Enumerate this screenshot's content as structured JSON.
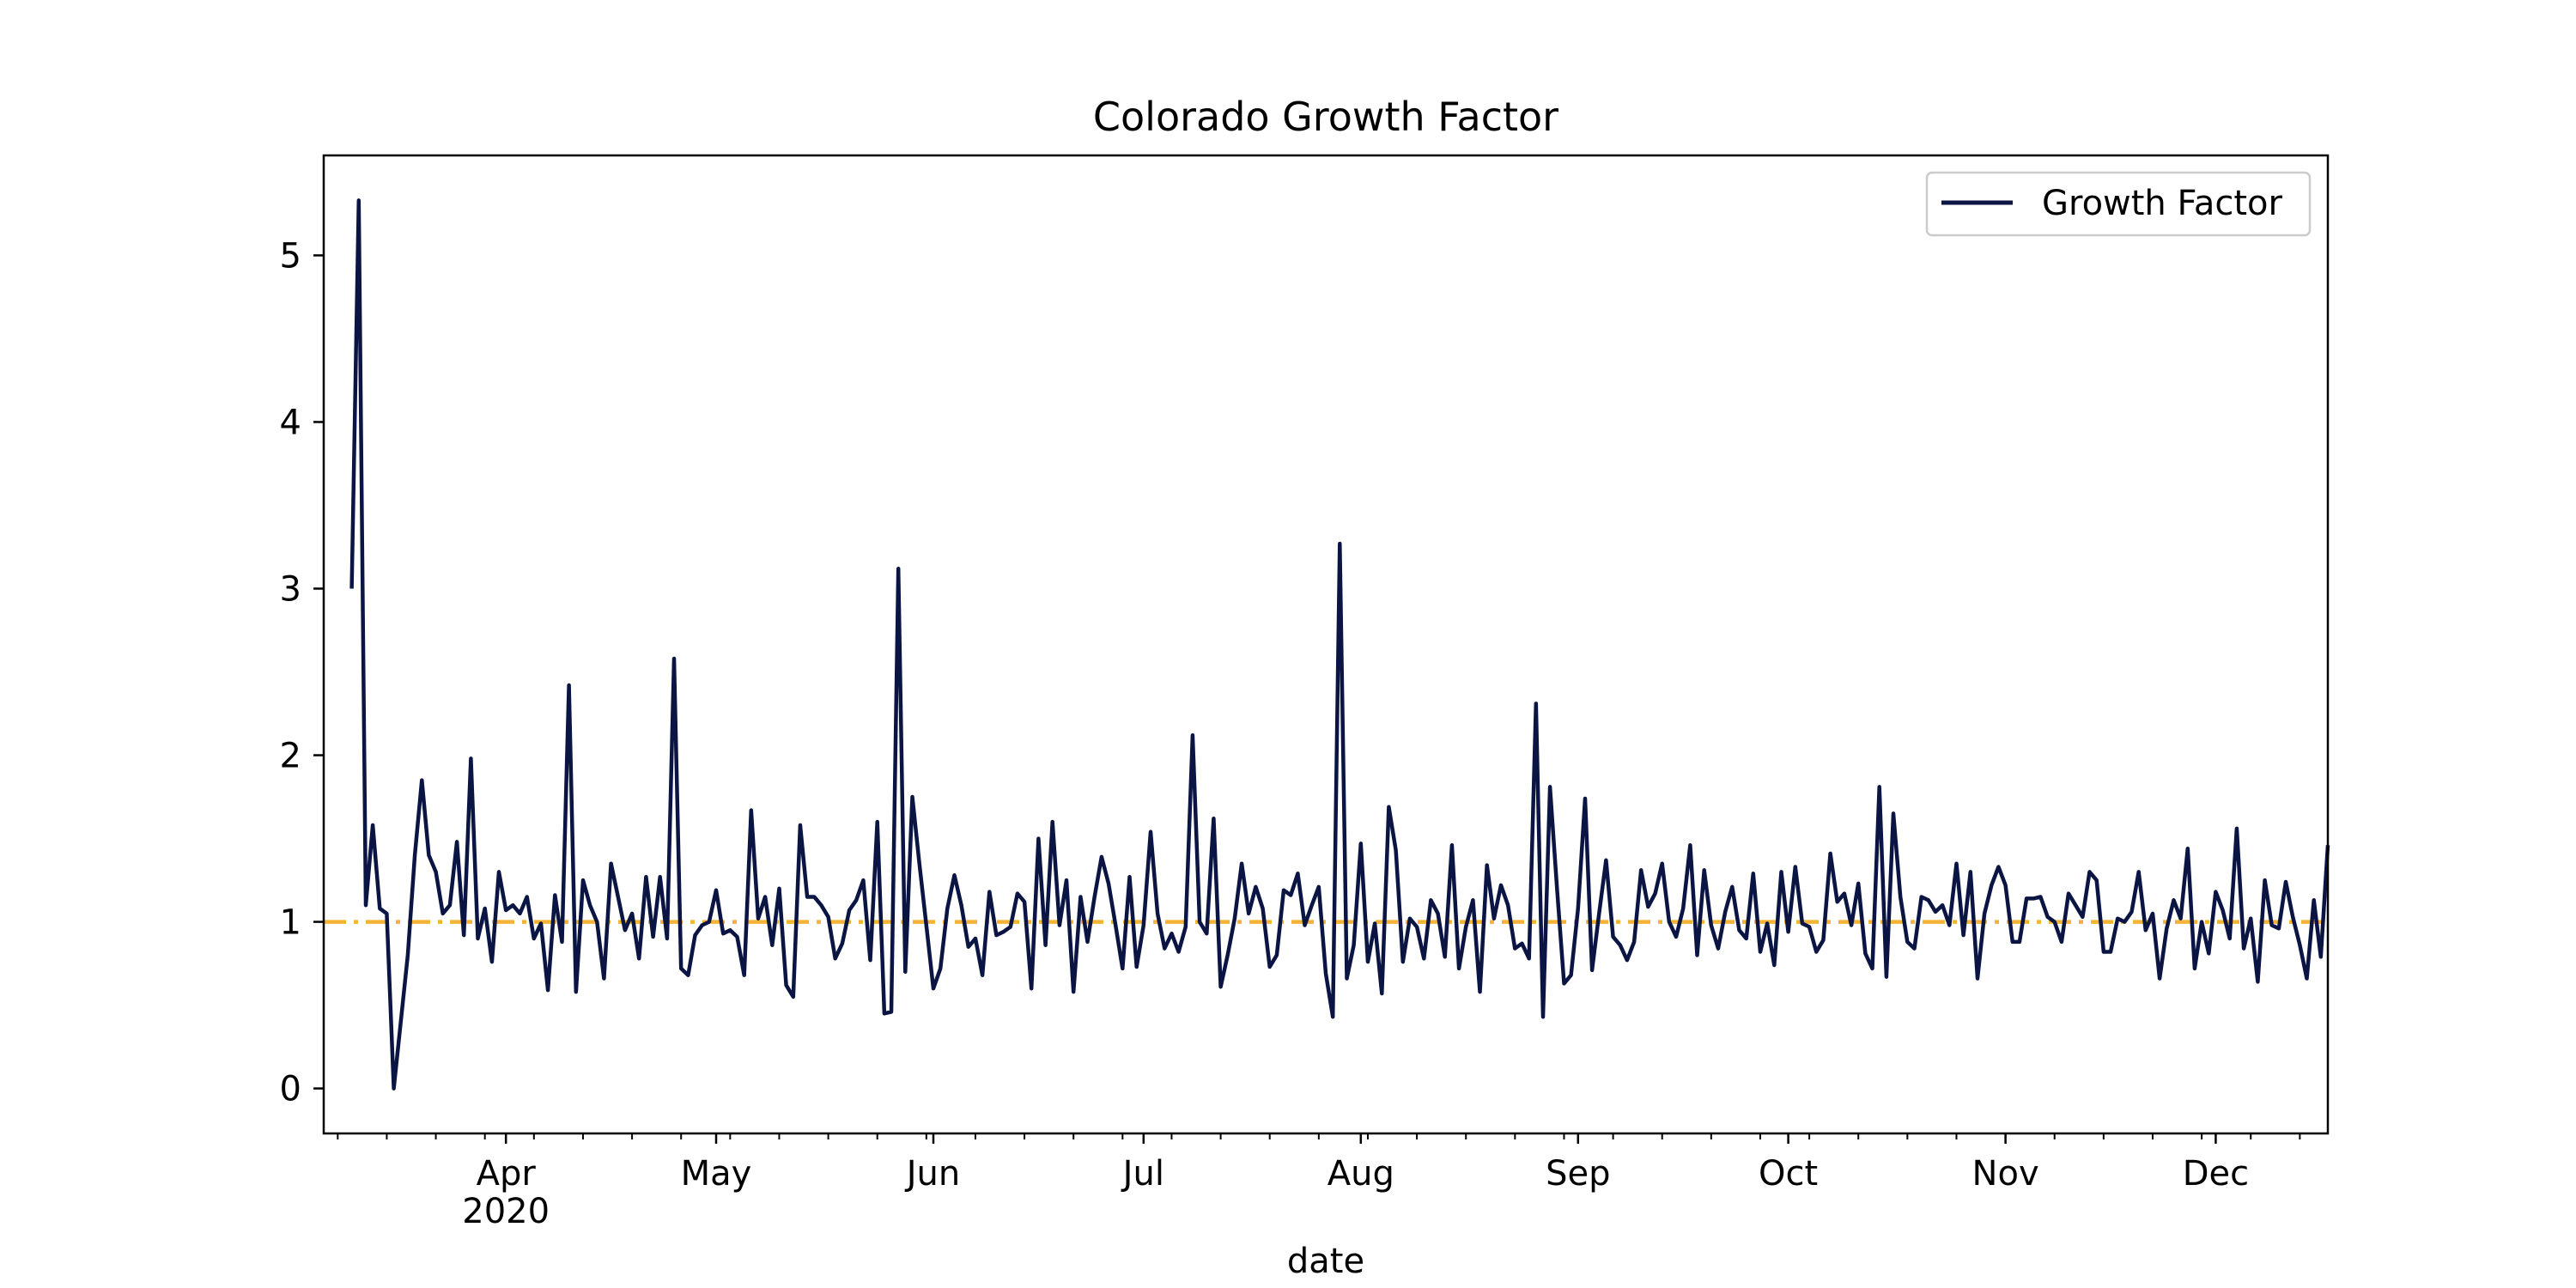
{
  "chart_data": {
    "type": "line",
    "title": "Colorado Growth Factor",
    "xlabel": "date",
    "ylabel": "",
    "ylim": [
      -0.27,
      5.6
    ],
    "xlim": [
      "2020-03-06",
      "2020-12-17"
    ],
    "grid": false,
    "legend": {
      "position": "top-right",
      "entries": [
        "Growth Factor"
      ]
    },
    "x_ticks": [
      {
        "date": "2020-04-01",
        "label": "Apr",
        "sublabel": "2020"
      },
      {
        "date": "2020-05-01",
        "label": "May",
        "sublabel": ""
      },
      {
        "date": "2020-06-01",
        "label": "Jun",
        "sublabel": ""
      },
      {
        "date": "2020-07-01",
        "label": "Jul",
        "sublabel": ""
      },
      {
        "date": "2020-08-01",
        "label": "Aug",
        "sublabel": ""
      },
      {
        "date": "2020-09-01",
        "label": "Sep",
        "sublabel": ""
      },
      {
        "date": "2020-10-01",
        "label": "Oct",
        "sublabel": ""
      },
      {
        "date": "2020-11-01",
        "label": "Nov",
        "sublabel": ""
      },
      {
        "date": "2020-12-01",
        "label": "Dec",
        "sublabel": ""
      }
    ],
    "y_ticks": [
      0,
      1,
      2,
      3,
      4,
      5
    ],
    "reference_line": {
      "y": 1,
      "color": "#f5b335",
      "style": "dashdot"
    },
    "series": [
      {
        "name": "Growth Factor",
        "color": "#0b1543",
        "start_date": "2020-03-10",
        "values": [
          3.0,
          5.33,
          1.1,
          1.58,
          1.08,
          1.05,
          0.0,
          null,
          0.8,
          1.4,
          1.85,
          1.4,
          1.3,
          1.05,
          1.1,
          1.48,
          0.92,
          1.98,
          0.9,
          1.08,
          0.76,
          1.3,
          1.07,
          1.1,
          1.05,
          1.15,
          0.9,
          0.99,
          0.59,
          1.16,
          0.88,
          2.42,
          0.58,
          1.25,
          1.1,
          1.0,
          0.66,
          1.35,
          1.15,
          0.95,
          1.05,
          0.78,
          1.27,
          0.91,
          1.27,
          0.9,
          2.58,
          0.72,
          0.68,
          0.92,
          0.98,
          1.0,
          1.19,
          0.93,
          0.95,
          0.91,
          0.68,
          1.67,
          1.02,
          1.15,
          0.86,
          1.2,
          0.62,
          0.55,
          1.58,
          1.15,
          1.15,
          1.1,
          1.03,
          0.78,
          0.87,
          1.07,
          1.13,
          1.25,
          0.77,
          1.6,
          0.45,
          0.46,
          3.12,
          0.7,
          1.75,
          1.35,
          0.98,
          0.6,
          0.72,
          1.08,
          1.28,
          1.1,
          0.85,
          0.9,
          0.68,
          1.18,
          0.92,
          0.94,
          0.97,
          1.17,
          1.12,
          0.6,
          1.5,
          0.86,
          1.6,
          0.98,
          1.25,
          0.58,
          1.15,
          0.88,
          1.15,
          1.39,
          1.23,
          0.98,
          0.72,
          1.27,
          0.73,
          0.98,
          1.54,
          1.05,
          0.84,
          0.93,
          0.82,
          0.97,
          2.12,
          1.0,
          0.93,
          1.62,
          0.61,
          0.8,
          1.02,
          1.35,
          1.05,
          1.21,
          1.08,
          0.73,
          0.8,
          1.19,
          1.16,
          1.29,
          0.98,
          1.1,
          1.21,
          0.69,
          0.43,
          3.27,
          0.66,
          0.86,
          1.47,
          0.76,
          0.99,
          0.57,
          1.69,
          1.43,
          0.76,
          1.02,
          0.97,
          0.78,
          1.13,
          1.05,
          0.79,
          1.46,
          0.72,
          0.97,
          1.13,
          0.58,
          1.34,
          1.02,
          1.22,
          1.1,
          0.84,
          0.87,
          0.78,
          2.31,
          0.43,
          1.81,
          1.2,
          0.63,
          0.68,
          1.08,
          1.74,
          0.71,
          1.05,
          1.37,
          0.91,
          0.86,
          0.77,
          0.88,
          1.31,
          1.09,
          1.17,
          1.35,
          1.0,
          0.91,
          1.08,
          1.46,
          0.8,
          1.31,
          0.98,
          0.84,
          1.06,
          1.21,
          0.95,
          0.9,
          1.29,
          0.82,
          0.99,
          0.74,
          1.3,
          0.94,
          1.33,
          0.99,
          0.97,
          0.82,
          0.89,
          1.41,
          1.12,
          1.17,
          0.98,
          1.23,
          0.81,
          0.72,
          1.81,
          0.67,
          1.65,
          1.15,
          0.88,
          0.84,
          1.15,
          1.13,
          1.06,
          1.1,
          0.98,
          1.35,
          0.92,
          1.3,
          0.66,
          1.05,
          1.22,
          1.33,
          1.22,
          0.88,
          0.88,
          1.14,
          1.14,
          1.15,
          1.03,
          1.0,
          0.88,
          1.17,
          1.1,
          1.03,
          1.3,
          1.25,
          0.82,
          0.82,
          1.02,
          1.0,
          1.06,
          1.3,
          0.95,
          1.05,
          0.66,
          0.96,
          1.13,
          1.02,
          1.44,
          0.72,
          1.0,
          0.81,
          1.18,
          1.07,
          0.9,
          1.56,
          0.84,
          1.02,
          0.64,
          1.25,
          0.98,
          0.96,
          1.24,
          1.03,
          0.86,
          0.66,
          1.13,
          0.79,
          1.46
        ]
      }
    ]
  }
}
